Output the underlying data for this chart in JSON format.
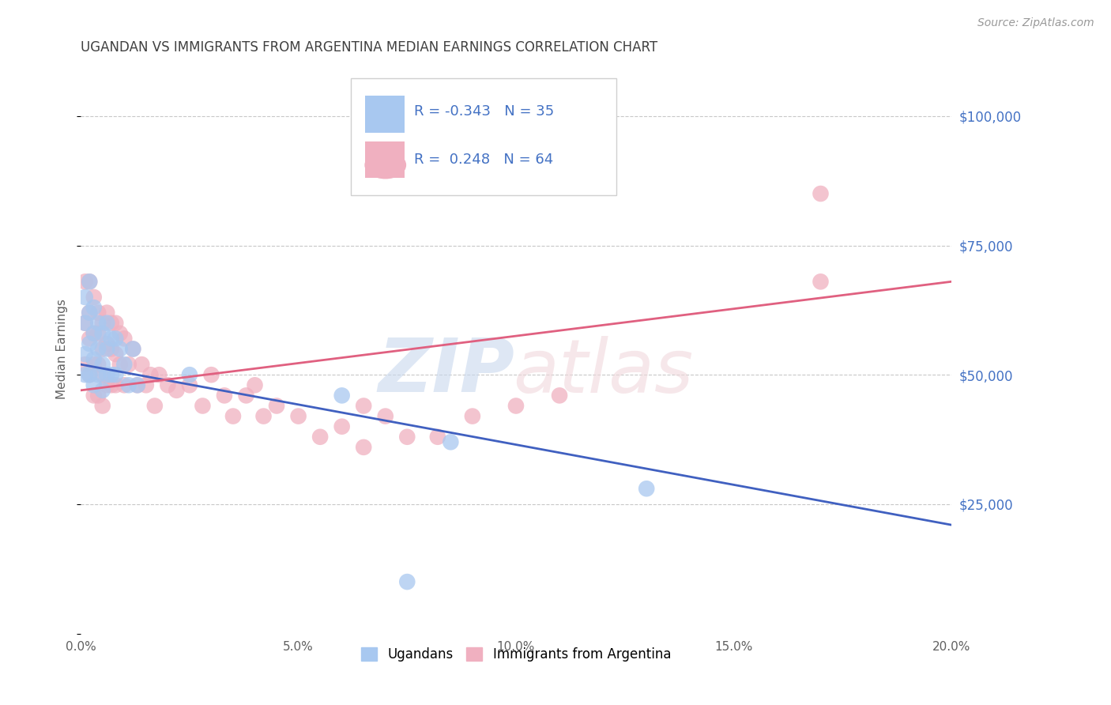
{
  "title": "UGANDAN VS IMMIGRANTS FROM ARGENTINA MEDIAN EARNINGS CORRELATION CHART",
  "source": "Source: ZipAtlas.com",
  "ylabel": "Median Earnings",
  "xlim": [
    0.0,
    0.2
  ],
  "ylim": [
    0,
    110000
  ],
  "yticks": [
    0,
    25000,
    50000,
    75000,
    100000
  ],
  "xticks": [
    0.0,
    0.05,
    0.1,
    0.15,
    0.2
  ],
  "background_color": "#ffffff",
  "grid_color": "#c8c8c8",
  "ugandan_color": "#a8c8f0",
  "argentina_color": "#f0b0c0",
  "blue_line_color": "#4060c0",
  "pink_line_color": "#e06080",
  "title_color": "#404040",
  "ugandan_x": [
    0.001,
    0.001,
    0.001,
    0.001,
    0.002,
    0.002,
    0.002,
    0.002,
    0.003,
    0.003,
    0.003,
    0.003,
    0.004,
    0.004,
    0.004,
    0.005,
    0.005,
    0.005,
    0.006,
    0.006,
    0.006,
    0.007,
    0.007,
    0.008,
    0.008,
    0.009,
    0.01,
    0.011,
    0.012,
    0.013,
    0.025,
    0.06,
    0.085,
    0.13,
    0.075
  ],
  "ugandan_y": [
    65000,
    60000,
    54000,
    50000,
    68000,
    62000,
    56000,
    50000,
    63000,
    58000,
    53000,
    48000,
    60000,
    55000,
    50000,
    58000,
    52000,
    47000,
    60000,
    55000,
    50000,
    57000,
    50000,
    57000,
    50000,
    55000,
    52000,
    48000,
    55000,
    48000,
    50000,
    46000,
    37000,
    28000,
    10000
  ],
  "argentina_x": [
    0.001,
    0.001,
    0.001,
    0.002,
    0.002,
    0.002,
    0.002,
    0.003,
    0.003,
    0.003,
    0.003,
    0.004,
    0.004,
    0.004,
    0.004,
    0.005,
    0.005,
    0.005,
    0.005,
    0.006,
    0.006,
    0.006,
    0.007,
    0.007,
    0.007,
    0.008,
    0.008,
    0.008,
    0.009,
    0.009,
    0.01,
    0.01,
    0.011,
    0.012,
    0.013,
    0.014,
    0.015,
    0.016,
    0.017,
    0.018,
    0.02,
    0.022,
    0.025,
    0.028,
    0.03,
    0.033,
    0.035,
    0.038,
    0.04,
    0.042,
    0.045,
    0.05,
    0.055,
    0.06,
    0.065,
    0.065,
    0.07,
    0.075,
    0.082,
    0.09,
    0.1,
    0.11,
    0.17,
    0.17
  ],
  "argentina_y": [
    68000,
    60000,
    52000,
    68000,
    62000,
    57000,
    50000,
    65000,
    58000,
    52000,
    46000,
    62000,
    58000,
    52000,
    46000,
    60000,
    55000,
    50000,
    44000,
    62000,
    56000,
    48000,
    60000,
    55000,
    48000,
    60000,
    54000,
    48000,
    58000,
    52000,
    57000,
    48000,
    52000,
    55000,
    48000,
    52000,
    48000,
    50000,
    44000,
    50000,
    48000,
    47000,
    48000,
    44000,
    50000,
    46000,
    42000,
    46000,
    48000,
    42000,
    44000,
    42000,
    38000,
    40000,
    44000,
    36000,
    42000,
    38000,
    38000,
    42000,
    44000,
    46000,
    85000,
    68000
  ],
  "blue_line_x0": 0.0,
  "blue_line_y0": 52000,
  "blue_line_x1": 0.2,
  "blue_line_y1": 21000,
  "pink_line_x0": 0.0,
  "pink_line_y0": 47000,
  "pink_line_x1": 0.2,
  "pink_line_y1": 68000
}
